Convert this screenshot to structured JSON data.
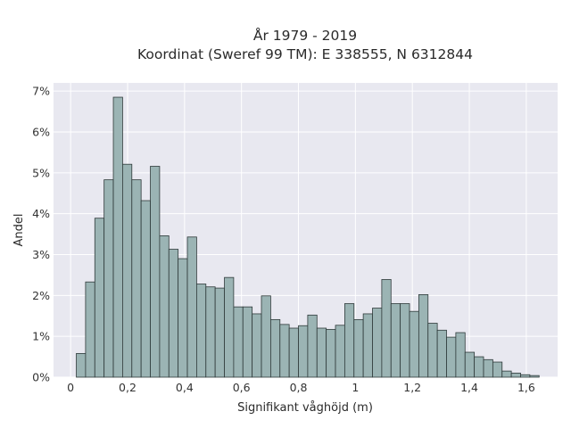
{
  "chart_data": {
    "type": "bar",
    "title_line1": "År 1979 - 2019",
    "title_line2": "Koordinat (Sweref 99 TM): E 338555, N 6312844",
    "xlabel": "Signifikant våghöjd (m)",
    "ylabel": "Andel",
    "x_ticks": [
      "0",
      "0,2",
      "0,4",
      "0,6",
      "0,8",
      "1",
      "1,2",
      "1,4",
      "1,6"
    ],
    "y_ticks": [
      "0%",
      "1%",
      "2%",
      "3%",
      "4%",
      "5%",
      "6%",
      "7%"
    ],
    "xlim": [
      -0.06,
      1.71
    ],
    "ylim": [
      0,
      7.2
    ],
    "bin_start": 0.02,
    "bin_width": 0.0325,
    "values": [
      0.58,
      2.33,
      3.89,
      4.83,
      6.85,
      5.21,
      4.83,
      4.32,
      5.16,
      3.46,
      3.13,
      2.9,
      3.43,
      2.28,
      2.21,
      2.18,
      2.44,
      1.72,
      1.72,
      1.55,
      1.99,
      1.41,
      1.29,
      1.2,
      1.26,
      1.52,
      1.2,
      1.17,
      1.27,
      1.8,
      1.41,
      1.55,
      1.69,
      2.39,
      1.8,
      1.8,
      1.61,
      2.02,
      1.32,
      1.15,
      0.98,
      1.09,
      0.61,
      0.5,
      0.43,
      0.37,
      0.15,
      0.1,
      0.06,
      0.04
    ],
    "colors": {
      "bar_fill": "#9bb4b4",
      "bar_stroke": "#2f3a3a",
      "plot_bg": "#e8e8f0",
      "grid": "#ffffff"
    },
    "grid": true
  }
}
